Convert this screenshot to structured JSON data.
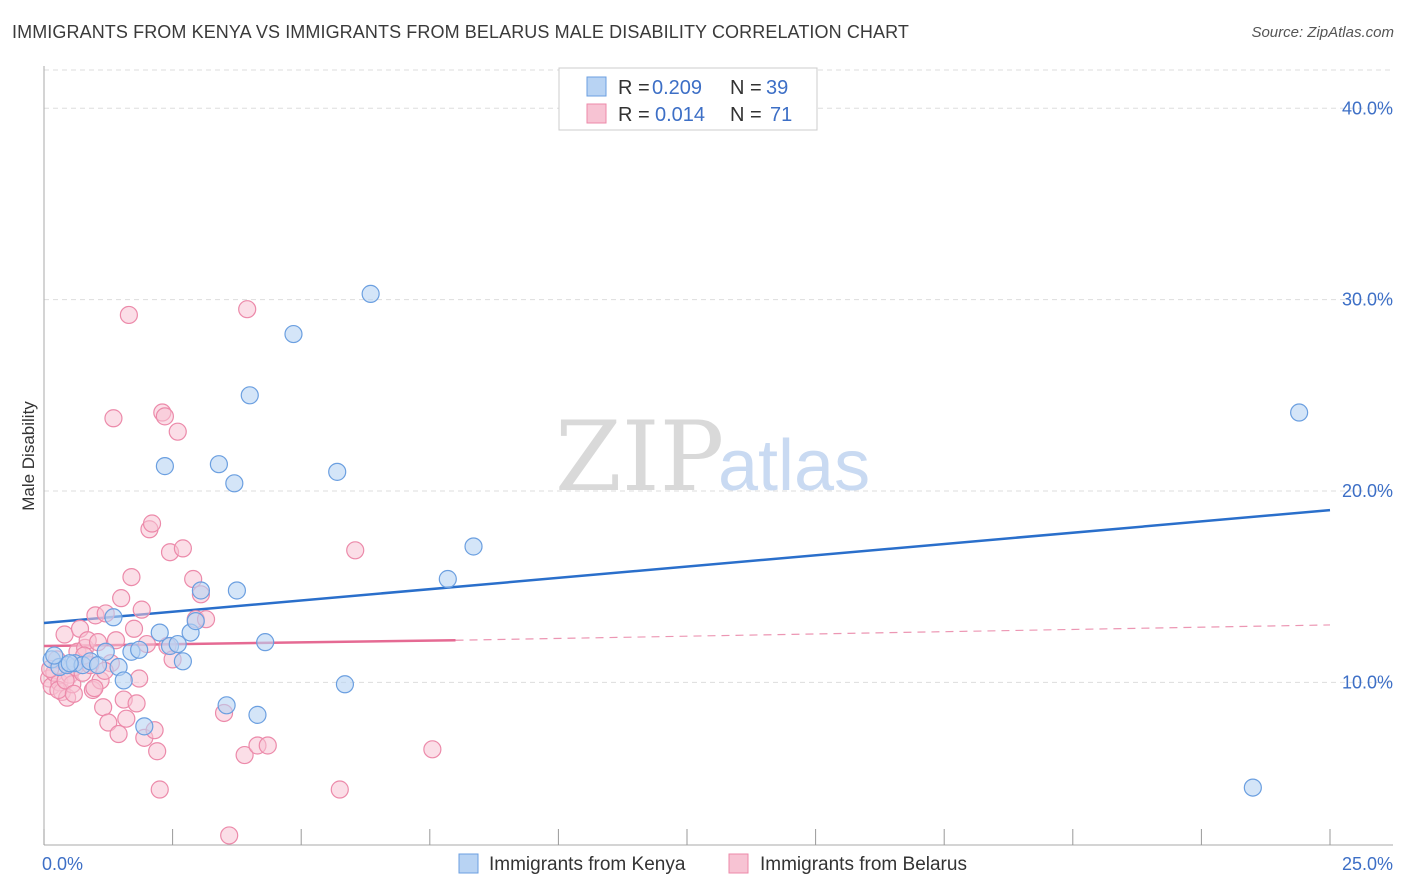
{
  "title": "IMMIGRANTS FROM KENYA VS IMMIGRANTS FROM BELARUS MALE DISABILITY CORRELATION CHART",
  "source": "Source: ZipAtlas.com",
  "watermark": {
    "zip": "ZIP",
    "atlas": "atlas"
  },
  "colors": {
    "kenya_fill": "#b8d3f3",
    "kenya_stroke": "#6b9fe0",
    "kenya_line": "#2a6fcb",
    "belarus_fill": "#f7c3d3",
    "belarus_stroke": "#ec8aaa",
    "belarus_line": "#e56a93",
    "grid": "#dddddd",
    "tick_text": "#3d6fc6"
  },
  "legend_top": [
    {
      "r_label": "R =",
      "r_value": "0.209",
      "n_label": "N =",
      "n_value": "39"
    },
    {
      "r_label": "R =",
      "r_value": "0.014",
      "n_label": "N =",
      "n_value": "71"
    }
  ],
  "legend_bottom": [
    "Immigrants from Kenya",
    "Immigrants from Belarus"
  ],
  "chart_data": {
    "type": "scatter",
    "title": "IMMIGRANTS FROM KENYA VS IMMIGRANTS FROM BELARUS MALE DISABILITY CORRELATION CHART",
    "xlabel": "",
    "ylabel": "Male Disability",
    "xlim": [
      0,
      25
    ],
    "ylim": [
      1.5,
      42
    ],
    "x_tick_labels": [
      "0.0%",
      "25.0%"
    ],
    "y_ticks": [
      10,
      20,
      30,
      40
    ],
    "y_tick_labels": [
      "10.0%",
      "20.0%",
      "30.0%",
      "40.0%"
    ],
    "grid": true,
    "series": [
      {
        "name": "Immigrants from Kenya",
        "r": 0.209,
        "n": 39,
        "trend": {
          "x": [
            0,
            25
          ],
          "y": [
            13.1,
            19.0
          ]
        },
        "points": [
          [
            0.15,
            11.2
          ],
          [
            0.3,
            10.8
          ],
          [
            0.45,
            10.9
          ],
          [
            0.6,
            11.0
          ],
          [
            0.75,
            10.9
          ],
          [
            0.9,
            11.1
          ],
          [
            1.05,
            10.9
          ],
          [
            1.2,
            11.6
          ],
          [
            1.35,
            13.4
          ],
          [
            1.45,
            10.8
          ],
          [
            1.55,
            10.1
          ],
          [
            1.7,
            11.6
          ],
          [
            1.85,
            11.7
          ],
          [
            1.95,
            7.7
          ],
          [
            2.25,
            12.6
          ],
          [
            2.35,
            21.3
          ],
          [
            2.45,
            11.9
          ],
          [
            2.6,
            12.0
          ],
          [
            2.7,
            11.1
          ],
          [
            2.85,
            12.6
          ],
          [
            2.95,
            13.2
          ],
          [
            3.05,
            14.8
          ],
          [
            3.4,
            21.4
          ],
          [
            3.55,
            8.8
          ],
          [
            3.7,
            20.4
          ],
          [
            3.75,
            14.8
          ],
          [
            4.0,
            25.0
          ],
          [
            4.15,
            8.3
          ],
          [
            4.3,
            12.1
          ],
          [
            4.85,
            28.2
          ],
          [
            5.7,
            21.0
          ],
          [
            5.85,
            9.9
          ],
          [
            6.35,
            30.3
          ],
          [
            7.85,
            15.4
          ],
          [
            8.35,
            17.1
          ],
          [
            24.4,
            24.1
          ],
          [
            23.5,
            4.5
          ],
          [
            0.2,
            11.4
          ],
          [
            0.5,
            11.0
          ]
        ]
      },
      {
        "name": "Immigrants from Belarus",
        "r": 0.014,
        "n": 71,
        "trend": {
          "x": [
            0,
            8.0
          ],
          "y": [
            11.9,
            12.2
          ]
        },
        "trend_dashed": {
          "x": [
            8.0,
            25
          ],
          "y": [
            12.2,
            13.0
          ]
        },
        "points": [
          [
            0.1,
            10.2
          ],
          [
            0.15,
            9.8
          ],
          [
            0.2,
            10.5
          ],
          [
            0.25,
            11.2
          ],
          [
            0.3,
            10.0
          ],
          [
            0.35,
            9.5
          ],
          [
            0.4,
            12.5
          ],
          [
            0.45,
            9.2
          ],
          [
            0.5,
            10.4
          ],
          [
            0.55,
            9.9
          ],
          [
            0.6,
            10.8
          ],
          [
            0.65,
            11.6
          ],
          [
            0.7,
            12.8
          ],
          [
            0.75,
            10.5
          ],
          [
            0.8,
            11.8
          ],
          [
            0.85,
            12.2
          ],
          [
            0.9,
            10.9
          ],
          [
            0.95,
            9.6
          ],
          [
            1.0,
            13.5
          ],
          [
            1.05,
            12.1
          ],
          [
            1.1,
            10.1
          ],
          [
            1.15,
            8.7
          ],
          [
            1.2,
            13.6
          ],
          [
            1.25,
            7.9
          ],
          [
            1.3,
            11.0
          ],
          [
            1.35,
            23.8
          ],
          [
            1.4,
            12.2
          ],
          [
            1.45,
            7.3
          ],
          [
            1.5,
            14.4
          ],
          [
            1.55,
            9.1
          ],
          [
            1.6,
            8.1
          ],
          [
            1.65,
            29.2
          ],
          [
            1.7,
            15.5
          ],
          [
            1.75,
            12.8
          ],
          [
            1.8,
            8.9
          ],
          [
            1.85,
            10.2
          ],
          [
            1.9,
            13.8
          ],
          [
            1.95,
            7.1
          ],
          [
            2.0,
            12.0
          ],
          [
            2.05,
            18.0
          ],
          [
            2.1,
            18.3
          ],
          [
            2.15,
            7.5
          ],
          [
            2.2,
            6.4
          ],
          [
            2.25,
            4.4
          ],
          [
            2.3,
            24.1
          ],
          [
            2.35,
            23.9
          ],
          [
            2.4,
            11.9
          ],
          [
            2.45,
            16.8
          ],
          [
            2.5,
            11.2
          ],
          [
            2.6,
            23.1
          ],
          [
            2.7,
            17.0
          ],
          [
            2.9,
            15.4
          ],
          [
            2.95,
            13.3
          ],
          [
            3.05,
            14.6
          ],
          [
            3.15,
            13.3
          ],
          [
            3.5,
            8.4
          ],
          [
            3.6,
            2.0
          ],
          [
            3.9,
            6.2
          ],
          [
            3.95,
            29.5
          ],
          [
            4.15,
            6.7
          ],
          [
            4.35,
            6.7
          ],
          [
            5.75,
            4.4
          ],
          [
            6.05,
            16.9
          ],
          [
            7.55,
            6.5
          ],
          [
            0.12,
            10.7
          ],
          [
            0.28,
            9.6
          ],
          [
            0.42,
            10.1
          ],
          [
            0.58,
            9.4
          ],
          [
            0.78,
            11.4
          ],
          [
            0.98,
            9.7
          ],
          [
            1.18,
            10.6
          ]
        ]
      }
    ]
  }
}
